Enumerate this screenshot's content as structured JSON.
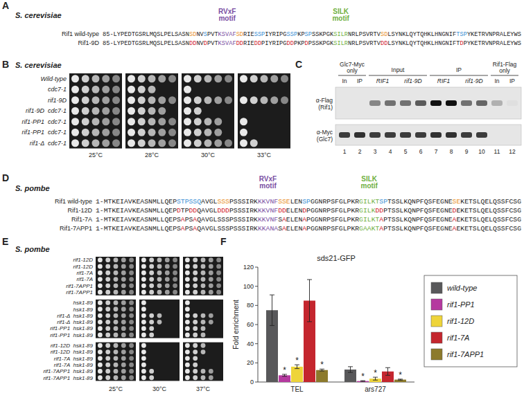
{
  "panels": {
    "A": {
      "label": "A",
      "organism": "S. cerevisiae",
      "motifs": [
        {
          "text": [
            "RVxF",
            "motif"
          ],
          "color": "#7a4fa3"
        },
        {
          "text": [
            "SILK",
            "motif"
          ],
          "color": "#6fb03f"
        }
      ],
      "sequences": [
        {
          "name": "Rif1 wild-type",
          "segments": [
            [
              "85-LYPEDTGSRLMQSLPELSASN",
              "#222222"
            ],
            [
              "SD",
              "#e8902a"
            ],
            [
              "NV",
              "#222222"
            ],
            [
              "S",
              "#3b8fd4"
            ],
            [
              "PVT",
              "#222222"
            ],
            [
              "KSVAF",
              "#7a4fa3"
            ],
            [
              "SD",
              "#e8902a"
            ],
            [
              "RIE",
              "#222222"
            ],
            [
              "SSP",
              "#3b8fd4"
            ],
            [
              "IYRIPG",
              "#222222"
            ],
            [
              "SSP",
              "#3b8fd4"
            ],
            [
              "KP",
              "#222222"
            ],
            [
              "SP",
              "#3b8fd4"
            ],
            [
              "SSKPGK",
              "#222222"
            ],
            [
              "SILR",
              "#6fb03f"
            ],
            [
              "NRLPSVRTV",
              "#222222"
            ],
            [
              "SD",
              "#e8902a"
            ],
            [
              "LSYNKLQYTQHKLHNGNIF",
              "#222222"
            ],
            [
              "TSP",
              "#3b8fd4"
            ],
            [
              "YKETRVNPRALEYWS",
              "#222222"
            ]
          ]
        },
        {
          "name": "Rif1-9D",
          "segments": [
            [
              "85-LYPEDTGSRLMQSLPELSASN",
              "#222222"
            ],
            [
              "DD",
              "#d2202a"
            ],
            [
              "NV",
              "#222222"
            ],
            [
              "D",
              "#d2202a"
            ],
            [
              "PVT",
              "#222222"
            ],
            [
              "KSVAF",
              "#7a4fa3"
            ],
            [
              "DD",
              "#d2202a"
            ],
            [
              "RIE",
              "#222222"
            ],
            [
              "DD",
              "#d2202a"
            ],
            [
              "PIYRIPG",
              "#222222"
            ],
            [
              "DD",
              "#d2202a"
            ],
            [
              "PKP",
              "#222222"
            ],
            [
              "D",
              "#d2202a"
            ],
            [
              "PSSKPGK",
              "#222222"
            ],
            [
              "SILR",
              "#6fb03f"
            ],
            [
              "NRLPSVRTV",
              "#222222"
            ],
            [
              "DD",
              "#d2202a"
            ],
            [
              "LSYNKLQYTQHKLHNGNIFT",
              "#222222"
            ],
            [
              "D",
              "#d2202a"
            ],
            [
              "PYKETRVNPRALEYWS",
              "#222222"
            ]
          ]
        }
      ]
    },
    "B": {
      "label": "B",
      "organism": "S. cerevisiae",
      "dilutions": 5,
      "strains": [
        "Wild-type",
        "cdc7-1",
        "rif1-9D",
        "rif1-9D  cdc7-1",
        "rif1-PP1  cdc7-1",
        "rif1-PP1  cdc7-1",
        "rif1-Δ  cdc7-1"
      ],
      "temperatures": [
        "25°C",
        "28°C",
        "30°C",
        "33°C"
      ],
      "growth": [
        [
          5,
          5,
          5,
          5,
          5,
          5,
          5
        ],
        [
          5,
          3,
          5,
          4,
          5,
          5,
          5
        ],
        [
          5,
          1,
          5,
          2,
          4,
          4,
          5
        ],
        [
          5,
          0,
          5,
          0,
          1,
          1,
          2
        ]
      ]
    },
    "C": {
      "label": "C",
      "groups": [
        {
          "text": [
            "Glc7-Myc",
            "only"
          ],
          "sublabels": [
            [
              "In",
              1
            ],
            [
              "IP",
              1
            ]
          ]
        },
        {
          "text": [
            "Input"
          ],
          "sublabels": [
            [
              "RIF1",
              2
            ],
            [
              "rif1-9D",
              2
            ]
          ]
        },
        {
          "text": [
            "IP"
          ],
          "sublabels": [
            [
              "RIF1",
              2
            ],
            [
              "rif1-9D",
              2
            ]
          ]
        },
        {
          "text": [
            "Rif1-Flag",
            "only"
          ],
          "sublabels": [
            [
              "In",
              1
            ],
            [
              "IP",
              1
            ]
          ]
        }
      ],
      "lanes": [
        1,
        2,
        3,
        4,
        5,
        6,
        7,
        8,
        9,
        10,
        11,
        12
      ],
      "blots": [
        {
          "label": [
            "α-Flag",
            "(Rif1)"
          ],
          "intensity": [
            0,
            0,
            0.45,
            0.55,
            0.55,
            0.65,
            1,
            1,
            0.55,
            0.6,
            0.25,
            0.03
          ]
        },
        {
          "label": [
            "α-Myc",
            "(Glc7)"
          ],
          "intensity": [
            0.8,
            0.85,
            0.8,
            0.8,
            0.8,
            0.8,
            0.85,
            0.85,
            0.8,
            0.8,
            0,
            0
          ]
        }
      ]
    },
    "D": {
      "label": "D",
      "organism": "S. pombe",
      "motifs": [
        {
          "text": [
            "RVxF",
            "motif"
          ],
          "color": "#7a4fa3"
        },
        {
          "text": [
            "SILK",
            "motif"
          ],
          "color": "#6fb03f"
        }
      ],
      "sequences": [
        {
          "name": "Rif1 wild-type",
          "segments": [
            [
              "1-MTKEIAVKEASNMLLQEP",
              "#222222"
            ],
            [
              "STPSSQ",
              "#3b8fd4"
            ],
            [
              "AVGL",
              "#222222"
            ],
            [
              "SSS",
              "#e8902a"
            ],
            [
              "PSSSIRK",
              "#222222"
            ],
            [
              "KKVNF",
              "#7a4fa3"
            ],
            [
              "SSE",
              "#e8902a"
            ],
            [
              "LEN",
              "#222222"
            ],
            [
              "SP",
              "#3b8fd4"
            ],
            [
              "GGNRPSFGLPKR",
              "#222222"
            ],
            [
              "GILKT",
              "#6fb03f"
            ],
            [
              "SP",
              "#3b8fd4"
            ],
            [
              "TSSLKQNPFQSFEGNE",
              "#222222"
            ],
            [
              "SE",
              "#e8902a"
            ],
            [
              "KETSLQELQSSFCSG",
              "#222222"
            ]
          ]
        },
        {
          "name": "Rif1-12D",
          "segments": [
            [
              "1-MTKEIAVKEASNMLLQEP",
              "#222222"
            ],
            [
              "D",
              "#d2202a"
            ],
            [
              "TP",
              "#222222"
            ],
            [
              "DD",
              "#d2202a"
            ],
            [
              "Q",
              "#222222"
            ],
            [
              "AVGL",
              "#222222"
            ],
            [
              "DDD",
              "#d2202a"
            ],
            [
              "PSSSIRK",
              "#222222"
            ],
            [
              "KKVNF",
              "#7a4fa3"
            ],
            [
              "DD",
              "#d2202a"
            ],
            [
              "ELEN",
              "#222222"
            ],
            [
              "D",
              "#d2202a"
            ],
            [
              "PGGNRPSFGLPKR",
              "#222222"
            ],
            [
              "GILK",
              "#6fb03f"
            ],
            [
              "DD",
              "#d2202a"
            ],
            [
              "PTSSLKQNPFQSFEGNE",
              "#222222"
            ],
            [
              "D",
              "#d2202a"
            ],
            [
              "EKETSLQELQSSFCSG",
              "#222222"
            ]
          ]
        },
        {
          "name": "Rif1-7A",
          "segments": [
            [
              "1-MTKEIAVKEASNMLLQEPS",
              "#222222"
            ],
            [
              "A",
              "#d2202a"
            ],
            [
              "PS",
              "#222222"
            ],
            [
              "A",
              "#d2202a"
            ],
            [
              "QAVGLSSSPSSSIRK",
              "#222222"
            ],
            [
              "KKVNF",
              "#7a4fa3"
            ],
            [
              "S",
              "#222222"
            ],
            [
              "A",
              "#d2202a"
            ],
            [
              "ELEN",
              "#222222"
            ],
            [
              "A",
              "#d2202a"
            ],
            [
              "PGGNRPSFGLPKR",
              "#222222"
            ],
            [
              "GILKT",
              "#6fb03f"
            ],
            [
              "A",
              "#d2202a"
            ],
            [
              "PTSSLKQNPFQSFEGNE",
              "#222222"
            ],
            [
              "A",
              "#d2202a"
            ],
            [
              "EKETSLQELQSSFCSG",
              "#222222"
            ]
          ]
        },
        {
          "name": "Rif1-7APP1",
          "segments": [
            [
              "1-MTKEIAVKEASNMLLQEPS",
              "#222222"
            ],
            [
              "A",
              "#d2202a"
            ],
            [
              "PS",
              "#222222"
            ],
            [
              "A",
              "#d2202a"
            ],
            [
              "QAVGLSSSPSSSIRK",
              "#222222"
            ],
            [
              "KKANA",
              "#7a4fa3"
            ],
            [
              "S",
              "#222222"
            ],
            [
              "A",
              "#d2202a"
            ],
            [
              "ELEN",
              "#222222"
            ],
            [
              "A",
              "#d2202a"
            ],
            [
              "PGGNRPSFGLPKR",
              "#222222"
            ],
            [
              "GAAKT",
              "#6fb03f"
            ],
            [
              "A",
              "#d2202a"
            ],
            [
              "PTSSLKQNPFQSFEGNE",
              "#222222"
            ],
            [
              "A",
              "#d2202a"
            ],
            [
              "EKETSLQELQSSFCSG",
              "#222222"
            ]
          ]
        }
      ]
    },
    "E": {
      "label": "E",
      "organism": "S. pombe",
      "dilutions": 5,
      "temperatures": [
        "25°C",
        "30°C",
        "37°C"
      ],
      "blocks": [
        {
          "strains": [
            "rif1-12D",
            "rif1-12D",
            "rif1-7A",
            "rif1-7A",
            "rif1-7APP1",
            "rif1-7APP1"
          ],
          "growth": [
            [
              5,
              5,
              5,
              5,
              5,
              5
            ],
            [
              5,
              5,
              5,
              5,
              5,
              5
            ],
            [
              5,
              5,
              5,
              5,
              5,
              5
            ]
          ]
        },
        {
          "strains": [
            "hsk1-89",
            "hsk1-89",
            "rif1-Δ  hsk1-89",
            "rif1-Δ  hsk1-89",
            "rif1-PP1  hsk1-89",
            "rif1-PP1  hsk1-89"
          ],
          "growth": [
            [
              5,
              5,
              5,
              5,
              5,
              5
            ],
            [
              1,
              1,
              3,
              3,
              2,
              2
            ],
            [
              1,
              1,
              4,
              4,
              3,
              3
            ]
          ]
        },
        {
          "strains": [
            "rif1-12D  hsk1-89",
            "rif1-12D  hsk1-89",
            "rif1-7A  hsk1-89",
            "rif1-7A  hsk1-89",
            "rif1-7APP1  hsk1-89",
            "rif1-7APP1  hsk1-89"
          ],
          "growth": [
            [
              5,
              5,
              5,
              5,
              5,
              5
            ],
            [
              1,
              1,
              1,
              1,
              2,
              2
            ],
            [
              3,
              3,
              2,
              2,
              4,
              4
            ]
          ]
        }
      ]
    },
    "F": {
      "label": "F"
    }
  },
  "chart_data": {
    "type": "bar",
    "title": "sds21-GFP",
    "ylabel": "Fold enrichment",
    "categories": [
      "TEL",
      "ars727"
    ],
    "series": [
      {
        "name": "wild-type",
        "color": "#58585a",
        "values": [
          75,
          13
        ],
        "errors": [
          16,
          3
        ]
      },
      {
        "name": "rif1-PP1",
        "color": "#b5399f",
        "values": [
          7,
          1
        ],
        "errors": [
          1,
          0.4
        ],
        "annotations": [
          "*",
          "*"
        ]
      },
      {
        "name": "rif1-12D",
        "color": "#eed43a",
        "values": [
          16,
          3.5
        ],
        "errors": [
          2,
          1.5
        ],
        "annotations": [
          "*",
          "*"
        ]
      },
      {
        "name": "rif1-7A",
        "color": "#c4262e",
        "values": [
          85,
          11
        ],
        "errors": [
          22,
          4
        ]
      },
      {
        "name": "rif1-7APP1",
        "color": "#8c7a2c",
        "values": [
          12.5,
          2.5
        ],
        "errors": [
          1,
          0.5
        ],
        "annotations": [
          "*",
          "*"
        ]
      }
    ],
    "ylim": [
      0,
      120
    ],
    "yticks": [
      0,
      20,
      40,
      60,
      80,
      100,
      120
    ],
    "legend": "right"
  }
}
